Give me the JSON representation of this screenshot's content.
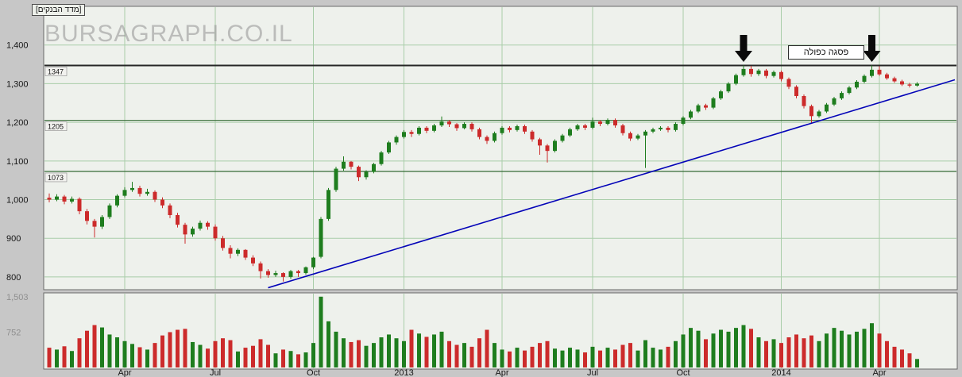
{
  "app": {
    "watermark": "BURSAGRAPH.CO.IL",
    "instrument_label": "[מדד הבנקים]"
  },
  "annotation": {
    "double_top_label": "פסגה כפולה"
  },
  "colors": {
    "background": "#c7c7c7",
    "pane_bg": "#eef1ec",
    "pane_border": "#6a6a6a",
    "grid": "#a9cda9",
    "up": "#1e7d1e",
    "down": "#cc2b2b",
    "trendline": "#0404b8",
    "resistance": "#262626",
    "level": "#356b35",
    "axis_text": "#161616",
    "volume_axis_text": "#8f8f8f",
    "arrow": "#0a0a0a",
    "watermark_color": "#9c9c9c",
    "level_label_bg": "#f2f2ef"
  },
  "chart_data": {
    "type": "candlestick_with_volume",
    "title": "מדד הבנקים",
    "legend_position": "none",
    "grid": true,
    "price_axis": {
      "min": 767,
      "max": 1500,
      "ticks": [
        {
          "price": 1400,
          "label": "1,400"
        },
        {
          "price": 1300,
          "label": "1,300"
        },
        {
          "price": 1200,
          "label": "1,200"
        },
        {
          "price": 1100,
          "label": "1,100"
        },
        {
          "price": 1000,
          "label": "1,000"
        },
        {
          "price": 900,
          "label": "900"
        },
        {
          "price": 800,
          "label": "800"
        }
      ]
    },
    "volume_axis": {
      "max": 1550,
      "ticks": [
        {
          "value": 1503,
          "label": "1,503"
        },
        {
          "value": 752,
          "label": "752"
        }
      ]
    },
    "x_ticks": [
      {
        "index": 10,
        "label": "Apr"
      },
      {
        "index": 22,
        "label": "Jul"
      },
      {
        "index": 35,
        "label": "Oct"
      },
      {
        "index": 47,
        "label": "2013"
      },
      {
        "index": 60,
        "label": "Apr"
      },
      {
        "index": 72,
        "label": "Jul"
      },
      {
        "index": 84,
        "label": "Oct"
      },
      {
        "index": 97,
        "label": "2014"
      },
      {
        "index": 110,
        "label": "Apr"
      }
    ],
    "levels": [
      {
        "price": 1347,
        "label": "1347",
        "style": "resistance"
      },
      {
        "price": 1205,
        "label": "1205",
        "style": "support"
      },
      {
        "price": 1073,
        "label": "1073",
        "style": "support"
      }
    ],
    "trendline": {
      "from_index": 29,
      "from_price": 772,
      "to_index": 120,
      "to_price": 1310
    },
    "arrow_indices": [
      92,
      109
    ],
    "candles": [
      [
        1005,
        1016,
        993,
        1000,
        420
      ],
      [
        1000,
        1014,
        996,
        1008,
        380
      ],
      [
        1008,
        1012,
        988,
        995,
        450
      ],
      [
        995,
        1008,
        990,
        1002,
        350
      ],
      [
        1002,
        1006,
        962,
        970,
        620
      ],
      [
        970,
        976,
        936,
        945,
        780
      ],
      [
        945,
        950,
        902,
        930,
        900
      ],
      [
        930,
        960,
        924,
        955,
        850
      ],
      [
        955,
        990,
        950,
        985,
        700
      ],
      [
        985,
        1014,
        980,
        1010,
        640
      ],
      [
        1010,
        1032,
        1006,
        1025,
        560
      ],
      [
        1025,
        1046,
        1020,
        1030,
        500
      ],
      [
        1030,
        1036,
        1008,
        1015,
        430
      ],
      [
        1015,
        1028,
        1010,
        1020,
        380
      ],
      [
        1020,
        1024,
        994,
        1000,
        520
      ],
      [
        1000,
        1006,
        978,
        985,
        680
      ],
      [
        985,
        990,
        952,
        960,
        750
      ],
      [
        960,
        966,
        928,
        935,
        800
      ],
      [
        935,
        940,
        886,
        910,
        820
      ],
      [
        910,
        930,
        904,
        925,
        540
      ],
      [
        925,
        946,
        920,
        940,
        480
      ],
      [
        940,
        944,
        922,
        930,
        400
      ],
      [
        930,
        936,
        894,
        900,
        560
      ],
      [
        900,
        906,
        868,
        875,
        620
      ],
      [
        875,
        882,
        848,
        860,
        580
      ],
      [
        860,
        874,
        854,
        870,
        340
      ],
      [
        870,
        872,
        844,
        850,
        420
      ],
      [
        850,
        856,
        828,
        835,
        460
      ],
      [
        835,
        840,
        796,
        815,
        600
      ],
      [
        815,
        820,
        798,
        805,
        480
      ],
      [
        805,
        816,
        800,
        810,
        300
      ],
      [
        810,
        812,
        788,
        800,
        380
      ],
      [
        800,
        818,
        795,
        815,
        350
      ],
      [
        815,
        818,
        800,
        810,
        280
      ],
      [
        810,
        827,
        806,
        825,
        320
      ],
      [
        825,
        852,
        820,
        850,
        520
      ],
      [
        852,
        955,
        848,
        950,
        1503
      ],
      [
        950,
        1030,
        945,
        1025,
        980
      ],
      [
        1025,
        1085,
        1020,
        1080,
        760
      ],
      [
        1080,
        1112,
        1075,
        1098,
        620
      ],
      [
        1098,
        1100,
        1078,
        1085,
        540
      ],
      [
        1085,
        1088,
        1048,
        1058,
        580
      ],
      [
        1058,
        1076,
        1052,
        1072,
        460
      ],
      [
        1072,
        1095,
        1068,
        1092,
        520
      ],
      [
        1092,
        1126,
        1088,
        1122,
        640
      ],
      [
        1122,
        1152,
        1118,
        1148,
        700
      ],
      [
        1148,
        1166,
        1142,
        1162,
        620
      ],
      [
        1162,
        1180,
        1158,
        1175,
        560
      ],
      [
        1175,
        1180,
        1162,
        1170,
        800
      ],
      [
        1170,
        1190,
        1166,
        1186,
        720
      ],
      [
        1186,
        1190,
        1172,
        1178,
        650
      ],
      [
        1178,
        1196,
        1174,
        1192,
        700
      ],
      [
        1192,
        1215,
        1188,
        1202,
        760
      ],
      [
        1202,
        1206,
        1188,
        1195,
        560
      ],
      [
        1195,
        1198,
        1178,
        1185,
        480
      ],
      [
        1185,
        1200,
        1182,
        1196,
        520
      ],
      [
        1196,
        1200,
        1176,
        1182,
        440
      ],
      [
        1182,
        1186,
        1156,
        1162,
        620
      ],
      [
        1162,
        1166,
        1144,
        1152,
        800
      ],
      [
        1152,
        1176,
        1148,
        1172,
        520
      ],
      [
        1172,
        1190,
        1168,
        1186,
        380
      ],
      [
        1186,
        1190,
        1174,
        1180,
        340
      ],
      [
        1180,
        1194,
        1176,
        1190,
        420
      ],
      [
        1190,
        1194,
        1170,
        1176,
        360
      ],
      [
        1176,
        1180,
        1150,
        1156,
        440
      ],
      [
        1156,
        1160,
        1116,
        1140,
        520
      ],
      [
        1140,
        1144,
        1096,
        1126,
        560
      ],
      [
        1126,
        1156,
        1122,
        1152,
        400
      ],
      [
        1152,
        1170,
        1148,
        1166,
        360
      ],
      [
        1166,
        1186,
        1162,
        1182,
        420
      ],
      [
        1182,
        1196,
        1178,
        1192,
        380
      ],
      [
        1192,
        1196,
        1180,
        1186,
        320
      ],
      [
        1186,
        1212,
        1182,
        1202,
        440
      ],
      [
        1202,
        1206,
        1190,
        1196,
        360
      ],
      [
        1196,
        1210,
        1192,
        1206,
        420
      ],
      [
        1206,
        1210,
        1186,
        1192,
        380
      ],
      [
        1192,
        1196,
        1166,
        1172,
        480
      ],
      [
        1172,
        1176,
        1152,
        1158,
        520
      ],
      [
        1158,
        1170,
        1154,
        1166,
        360
      ],
      [
        1166,
        1180,
        1082,
        1176,
        580
      ],
      [
        1176,
        1186,
        1172,
        1182,
        420
      ],
      [
        1182,
        1190,
        1178,
        1186,
        380
      ],
      [
        1186,
        1190,
        1174,
        1180,
        440
      ],
      [
        1180,
        1200,
        1176,
        1196,
        560
      ],
      [
        1196,
        1216,
        1192,
        1212,
        700
      ],
      [
        1212,
        1232,
        1208,
        1228,
        840
      ],
      [
        1228,
        1248,
        1224,
        1244,
        780
      ],
      [
        1244,
        1248,
        1232,
        1238,
        600
      ],
      [
        1238,
        1266,
        1234,
        1262,
        720
      ],
      [
        1262,
        1284,
        1258,
        1280,
        800
      ],
      [
        1280,
        1304,
        1276,
        1300,
        760
      ],
      [
        1300,
        1326,
        1296,
        1322,
        840
      ],
      [
        1322,
        1347,
        1318,
        1338,
        900
      ],
      [
        1338,
        1346,
        1318,
        1325,
        820
      ],
      [
        1325,
        1338,
        1320,
        1334,
        640
      ],
      [
        1334,
        1338,
        1314,
        1320,
        560
      ],
      [
        1320,
        1334,
        1316,
        1330,
        600
      ],
      [
        1330,
        1334,
        1306,
        1312,
        520
      ],
      [
        1312,
        1316,
        1286,
        1292,
        640
      ],
      [
        1292,
        1296,
        1262,
        1268,
        700
      ],
      [
        1268,
        1272,
        1236,
        1242,
        620
      ],
      [
        1242,
        1246,
        1196,
        1216,
        680
      ],
      [
        1216,
        1232,
        1212,
        1228,
        560
      ],
      [
        1228,
        1250,
        1224,
        1246,
        720
      ],
      [
        1246,
        1266,
        1242,
        1262,
        840
      ],
      [
        1262,
        1280,
        1258,
        1276,
        780
      ],
      [
        1276,
        1294,
        1272,
        1290,
        700
      ],
      [
        1290,
        1309,
        1286,
        1305,
        760
      ],
      [
        1305,
        1324,
        1301,
        1320,
        820
      ],
      [
        1320,
        1347,
        1316,
        1336,
        940
      ],
      [
        1336,
        1345,
        1320,
        1324,
        720
      ],
      [
        1324,
        1328,
        1310,
        1314,
        560
      ],
      [
        1314,
        1318,
        1302,
        1306,
        440
      ],
      [
        1306,
        1310,
        1294,
        1298,
        380
      ],
      [
        1298,
        1302,
        1290,
        1295,
        300
      ],
      [
        1295,
        1304,
        1292,
        1300,
        180
      ]
    ]
  }
}
